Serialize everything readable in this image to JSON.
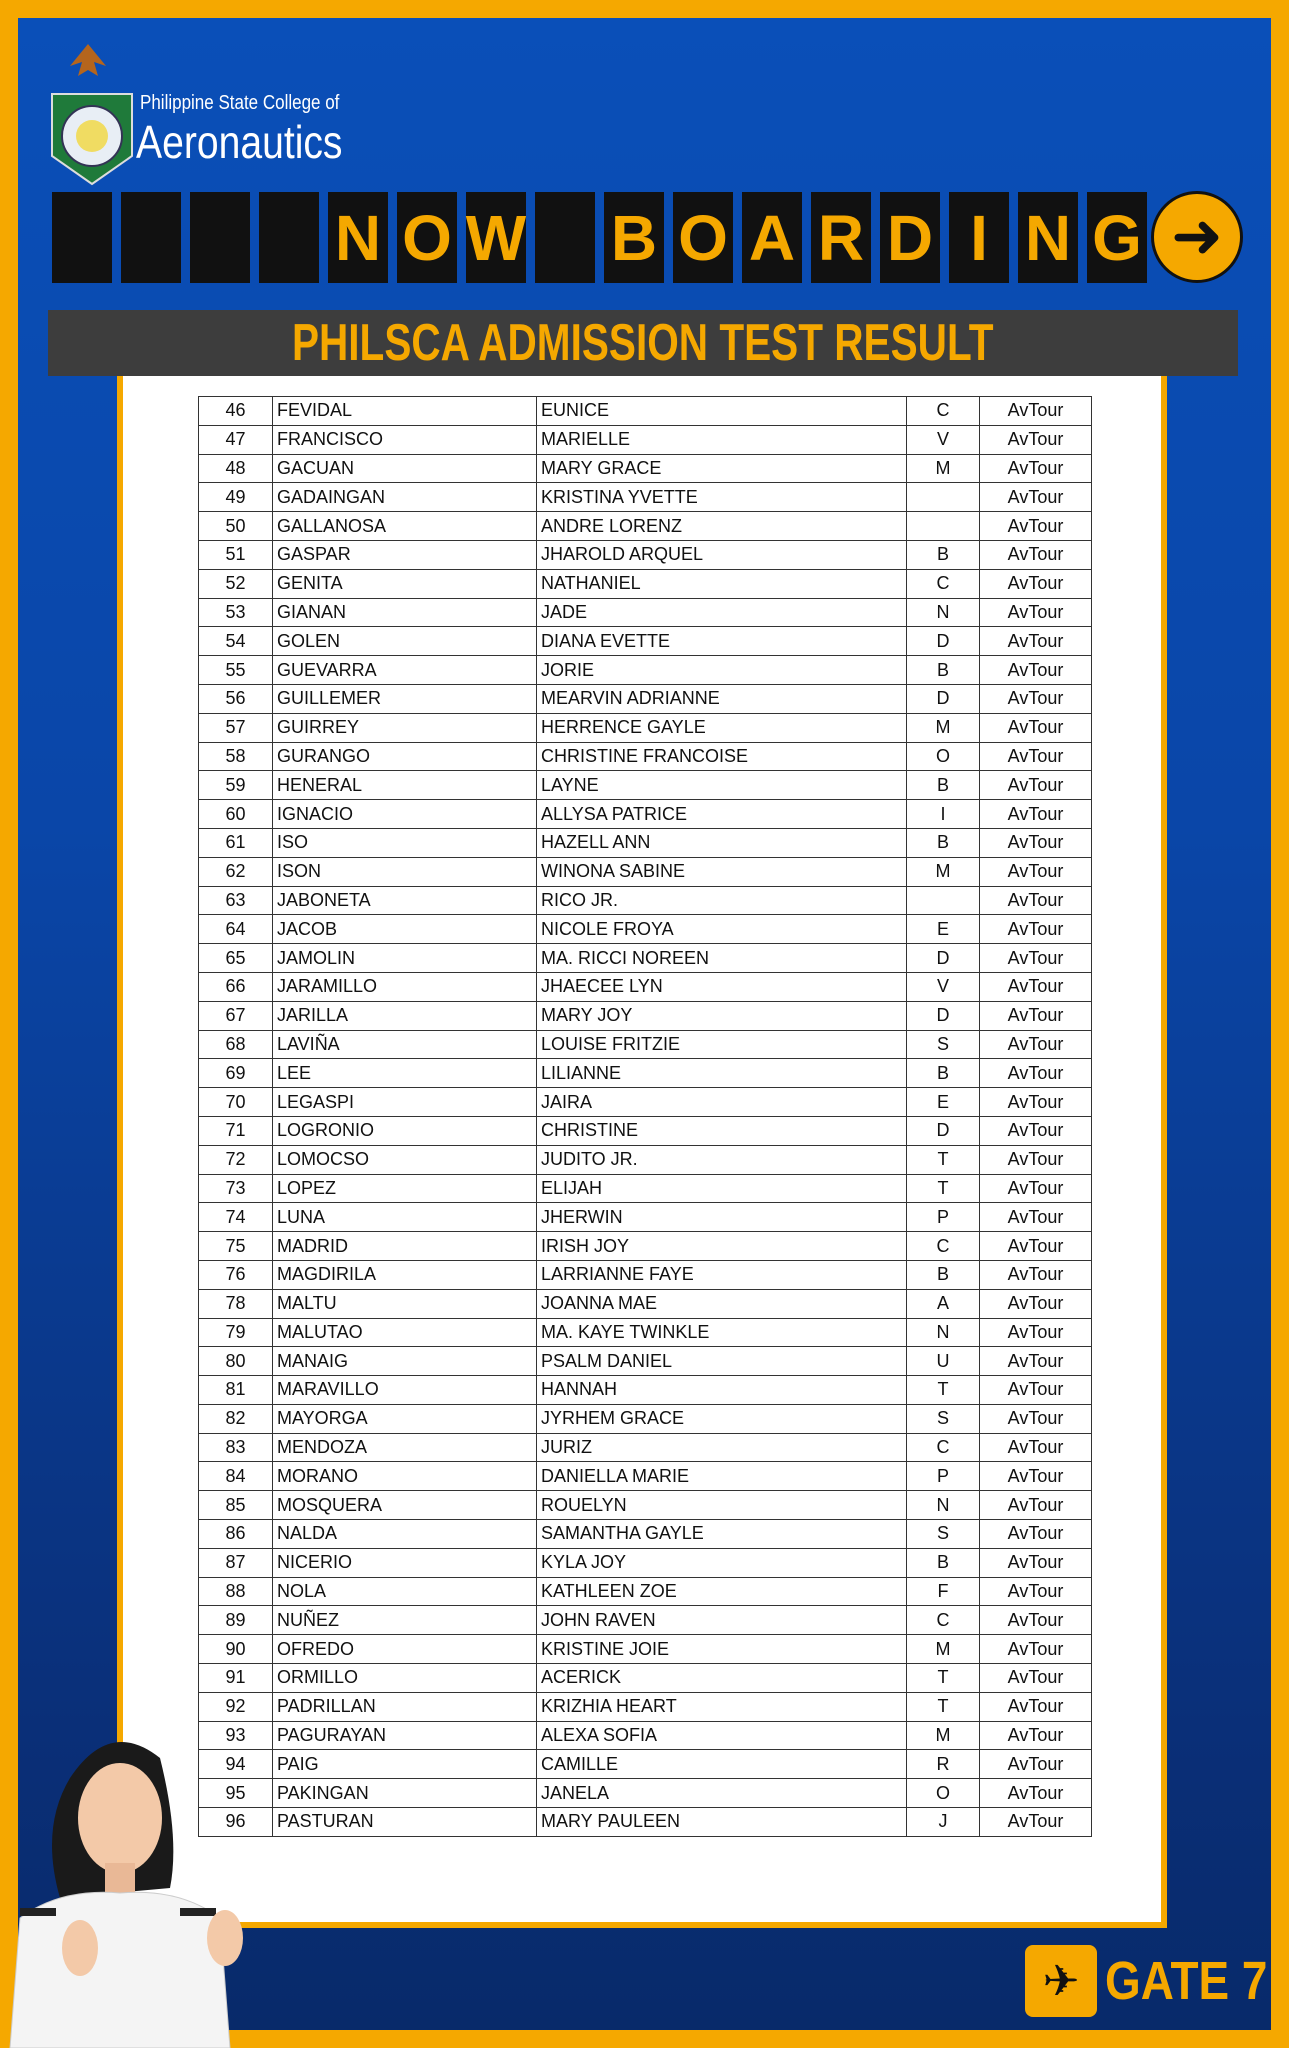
{
  "header": {
    "college_line1": "Philippine State College of",
    "college_line2": "Aeronautics",
    "board_letters": [
      "",
      " ",
      "",
      "",
      "N",
      "O",
      "W",
      "",
      "B",
      "O",
      "A",
      "R",
      "D",
      "I",
      "N",
      "G"
    ],
    "banner": "PHILSCA ADMISSION TEST RESULT"
  },
  "colors": {
    "accent": "#f5a800",
    "blue": "#0a4fb8",
    "dark": "#3d3d3d"
  },
  "footer": {
    "gate": "GATE 7"
  },
  "rows": [
    [
      "46",
      "FEVIDAL",
      "EUNICE",
      "C",
      "AvTour"
    ],
    [
      "47",
      "FRANCISCO",
      "MARIELLE",
      "V",
      "AvTour"
    ],
    [
      "48",
      "GACUAN",
      "MARY GRACE",
      "M",
      "AvTour"
    ],
    [
      "49",
      "GADAINGAN",
      "KRISTINA YVETTE",
      "",
      "AvTour"
    ],
    [
      "50",
      "GALLANOSA",
      "ANDRE LORENZ",
      "",
      "AvTour"
    ],
    [
      "51",
      "GASPAR",
      "JHAROLD ARQUEL",
      "B",
      "AvTour"
    ],
    [
      "52",
      "GENITA",
      "NATHANIEL",
      "C",
      "AvTour"
    ],
    [
      "53",
      "GIANAN",
      "JADE",
      "N",
      "AvTour"
    ],
    [
      "54",
      "GOLEN",
      "DIANA EVETTE",
      "D",
      "AvTour"
    ],
    [
      "55",
      "GUEVARRA",
      "JORIE",
      "B",
      "AvTour"
    ],
    [
      "56",
      "GUILLEMER",
      "MEARVIN ADRIANNE",
      "D",
      "AvTour"
    ],
    [
      "57",
      "GUIRREY",
      "HERRENCE GAYLE",
      "M",
      "AvTour"
    ],
    [
      "58",
      "GURANGO",
      "CHRISTINE FRANCOISE",
      "O",
      "AvTour"
    ],
    [
      "59",
      "HENERAL",
      "LAYNE",
      "B",
      "AvTour"
    ],
    [
      "60",
      "IGNACIO",
      "ALLYSA PATRICE",
      "I",
      "AvTour"
    ],
    [
      "61",
      "ISO",
      "HAZELL ANN",
      "B",
      "AvTour"
    ],
    [
      "62",
      "ISON",
      "WINONA SABINE",
      "M",
      "AvTour"
    ],
    [
      "63",
      "JABONETA",
      "RICO JR.",
      "",
      "AvTour"
    ],
    [
      "64",
      "JACOB",
      "NICOLE FROYA",
      "E",
      "AvTour"
    ],
    [
      "65",
      "JAMOLIN",
      "MA. RICCI NOREEN",
      "D",
      "AvTour"
    ],
    [
      "66",
      "JARAMILLO",
      "JHAECEE LYN",
      "V",
      "AvTour"
    ],
    [
      "67",
      "JARILLA",
      "MARY JOY",
      "D",
      "AvTour"
    ],
    [
      "68",
      "LAVIÑA",
      "LOUISE  FRITZIE",
      "S",
      "AvTour"
    ],
    [
      "69",
      "LEE",
      "LILIANNE",
      "B",
      "AvTour"
    ],
    [
      "70",
      "LEGASPI",
      "JAIRA",
      "E",
      "AvTour"
    ],
    [
      "71",
      "LOGRONIO",
      "CHRISTINE",
      "D",
      "AvTour"
    ],
    [
      "72",
      "LOMOCSO",
      "JUDITO JR.",
      "T",
      "AvTour"
    ],
    [
      "73",
      "LOPEZ",
      "ELIJAH",
      "T",
      "AvTour"
    ],
    [
      "74",
      "LUNA",
      "JHERWIN",
      "P",
      "AvTour"
    ],
    [
      "75",
      "MADRID",
      "IRISH JOY",
      "C",
      "AvTour"
    ],
    [
      "76",
      "MAGDIRILA",
      "LARRIANNE FAYE",
      "B",
      "AvTour"
    ],
    [
      "78",
      "MALTU",
      "JOANNA MAE",
      "A",
      "AvTour"
    ],
    [
      "79",
      "MALUTAO",
      "MA. KAYE TWINKLE",
      "N",
      "AvTour"
    ],
    [
      "80",
      "MANAIG",
      "PSALM DANIEL",
      "U",
      "AvTour"
    ],
    [
      "81",
      "MARAVILLO",
      "HANNAH",
      "T",
      "AvTour"
    ],
    [
      "82",
      "MAYORGA",
      "JYRHEM GRACE",
      "S",
      "AvTour"
    ],
    [
      "83",
      "MENDOZA",
      "JURIZ",
      "C",
      "AvTour"
    ],
    [
      "84",
      "MORANO",
      "DANIELLA MARIE",
      "P",
      "AvTour"
    ],
    [
      "85",
      "MOSQUERA",
      "ROUELYN",
      "N",
      "AvTour"
    ],
    [
      "86",
      "NALDA",
      "SAMANTHA GAYLE",
      "S",
      "AvTour"
    ],
    [
      "87",
      "NICERIO",
      "KYLA JOY",
      "B",
      "AvTour"
    ],
    [
      "88",
      "NOLA",
      "KATHLEEN ZOE",
      "F",
      "AvTour"
    ],
    [
      "89",
      "NUÑEZ",
      "JOHN RAVEN",
      "C",
      "AvTour"
    ],
    [
      "90",
      "OFREDO",
      "KRISTINE JOIE",
      "M",
      "AvTour"
    ],
    [
      "91",
      "ORMILLO",
      "ACERICK",
      "T",
      "AvTour"
    ],
    [
      "92",
      "PADRILLAN",
      "KRIZHIA HEART",
      "T",
      "AvTour"
    ],
    [
      "93",
      "PAGURAYAN",
      "ALEXA SOFIA",
      "M",
      "AvTour"
    ],
    [
      "94",
      "PAIG",
      "CAMILLE",
      "R",
      "AvTour"
    ],
    [
      "95",
      "PAKINGAN",
      "JANELA",
      "O",
      "AvTour"
    ],
    [
      "96",
      "PASTURAN",
      "MARY PAULEEN",
      "J",
      "AvTour"
    ]
  ]
}
